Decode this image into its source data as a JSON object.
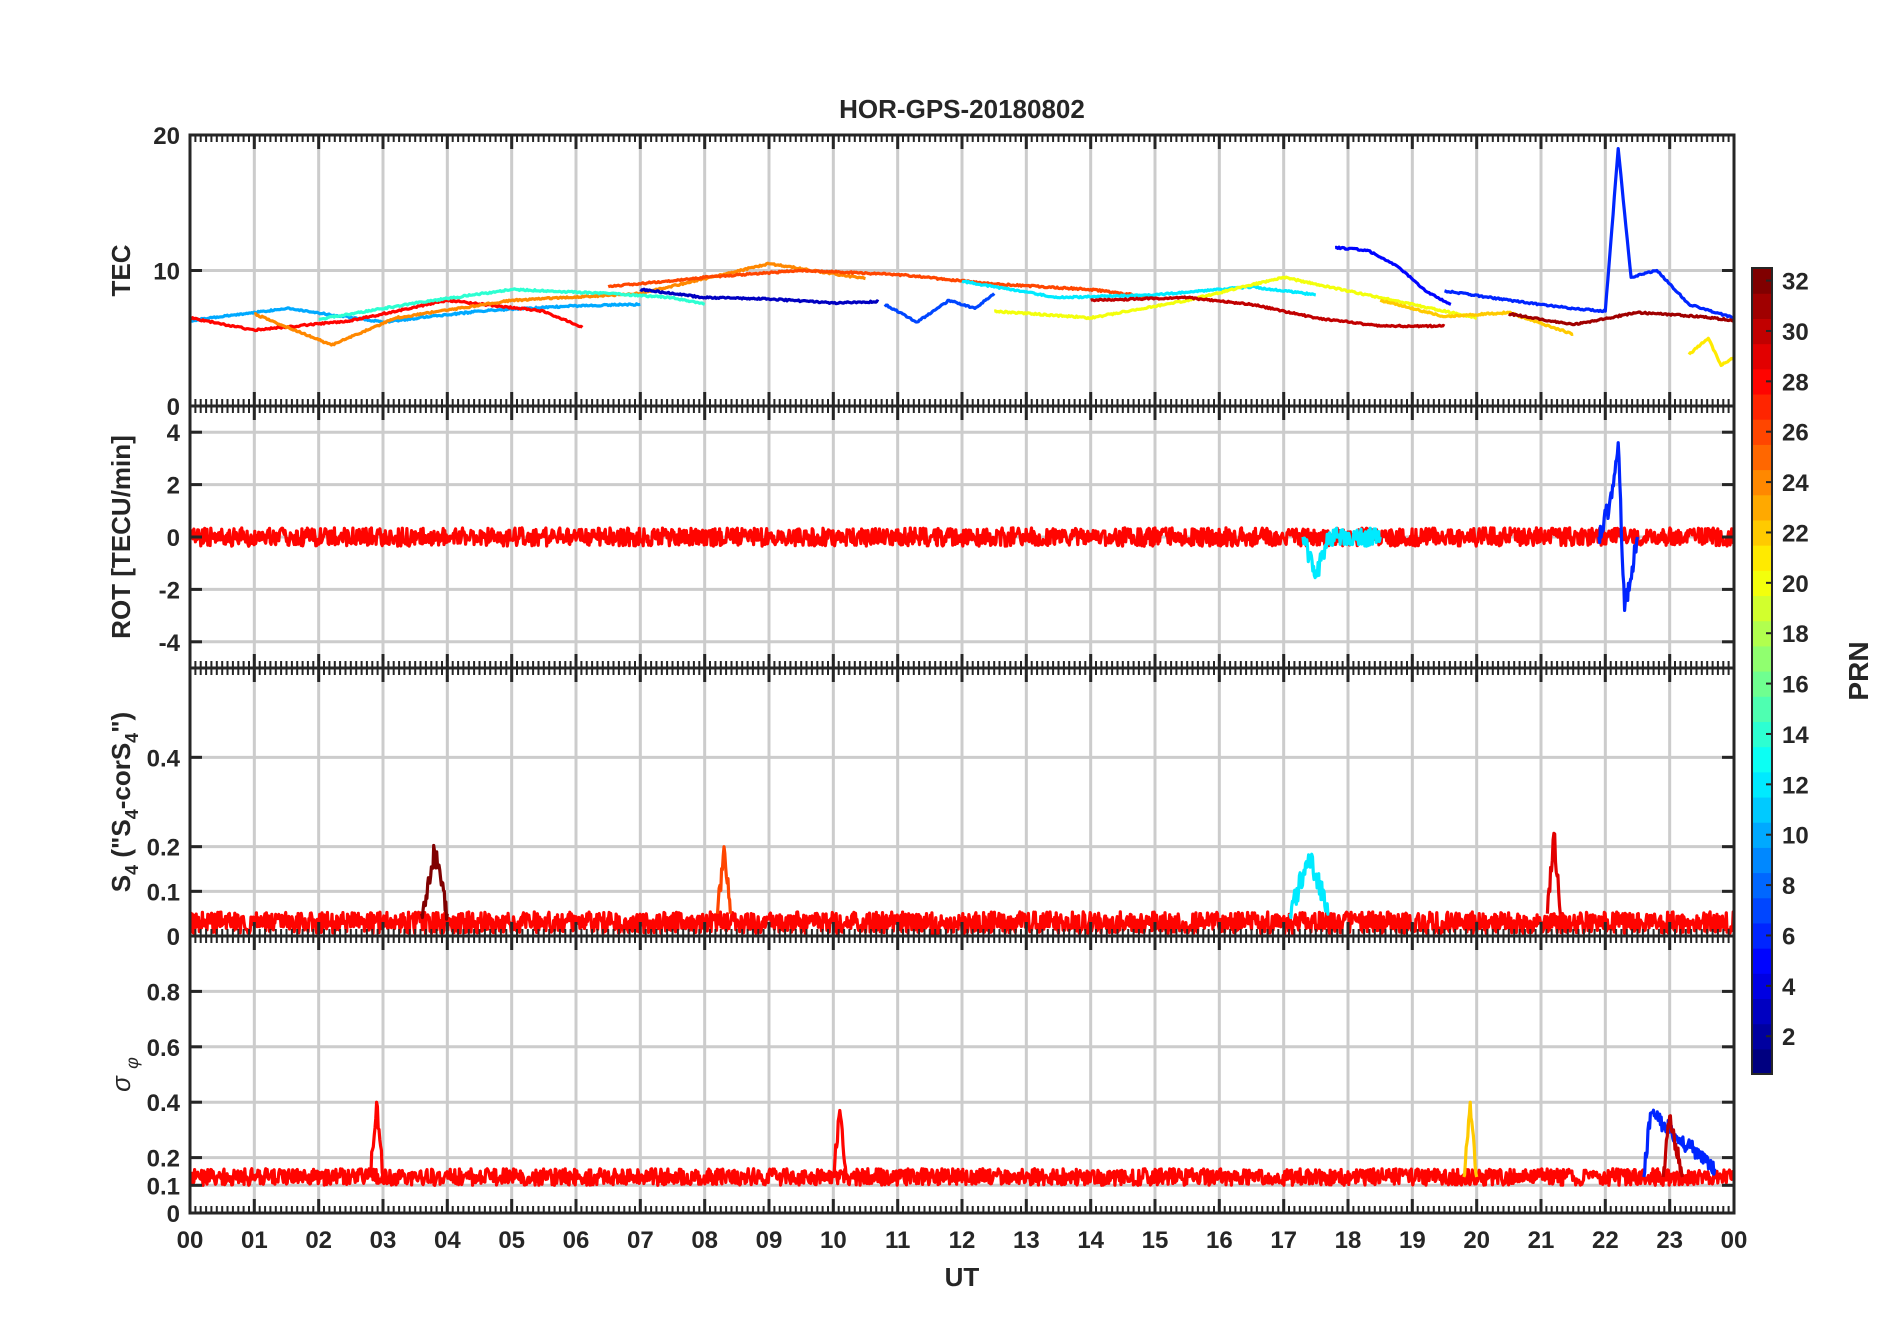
{
  "title": "HOR-GPS-20180802",
  "xlabel": "UT",
  "x_ticks": [
    "00",
    "01",
    "02",
    "03",
    "04",
    "05",
    "06",
    "07",
    "08",
    "09",
    "10",
    "11",
    "12",
    "13",
    "14",
    "15",
    "16",
    "17",
    "18",
    "19",
    "20",
    "21",
    "22",
    "23",
    "00"
  ],
  "colorbar": {
    "label": "PRN",
    "range": [
      1,
      32
    ],
    "ticks": [
      "2",
      "4",
      "6",
      "8",
      "10",
      "12",
      "14",
      "16",
      "18",
      "20",
      "22",
      "24",
      "26",
      "28",
      "30",
      "32"
    ],
    "colormap": "jet"
  },
  "chart_data": [
    {
      "type": "line",
      "ylabel": "TEC",
      "ylim": [
        0,
        20
      ],
      "yticks": [
        "0",
        "10",
        "20"
      ],
      "xlim": [
        0,
        24
      ],
      "grid": true,
      "series": [
        {
          "prn": 10,
          "x": [
            0.0,
            1.5,
            3.0,
            4.5,
            6.0,
            7.0
          ],
          "y": [
            6.3,
            7.2,
            6.2,
            7.0,
            7.4,
            7.5
          ]
        },
        {
          "prn": 28,
          "x": [
            0.0,
            1.0,
            2.5,
            4.0,
            5.5,
            6.1
          ],
          "y": [
            6.5,
            5.6,
            6.3,
            7.8,
            7.0,
            5.8
          ]
        },
        {
          "prn": 24,
          "x": [
            1.0,
            2.2,
            3.2,
            5.0,
            7.0,
            9.0,
            10.5
          ],
          "y": [
            6.8,
            4.5,
            6.5,
            7.8,
            8.3,
            10.5,
            9.4
          ]
        },
        {
          "prn": 14,
          "x": [
            2.0,
            3.5,
            5.0,
            6.5,
            7.5,
            8.0
          ],
          "y": [
            6.4,
            7.6,
            8.6,
            8.3,
            8.0,
            7.5
          ]
        },
        {
          "prn": 26,
          "x": [
            6.5,
            8.0,
            9.5,
            11.0,
            12.5,
            14.0,
            15.0
          ],
          "y": [
            8.8,
            9.5,
            10.0,
            9.7,
            9.0,
            8.6,
            8.0
          ]
        },
        {
          "prn": 3,
          "x": [
            7.0,
            8.0,
            9.0,
            10.0,
            10.7
          ],
          "y": [
            8.6,
            8.0,
            7.9,
            7.6,
            7.7
          ]
        },
        {
          "prn": 7,
          "x": [
            10.8,
            11.3,
            11.8,
            12.2,
            12.5
          ],
          "y": [
            7.5,
            6.2,
            7.8,
            7.2,
            8.3
          ]
        },
        {
          "prn": 12,
          "x": [
            12.0,
            13.5,
            15.0,
            16.5,
            17.5
          ],
          "y": [
            9.2,
            8.0,
            8.2,
            8.8,
            8.2
          ]
        },
        {
          "prn": 20,
          "x": [
            12.5,
            14.0,
            15.5,
            17.0,
            18.5,
            20.0
          ],
          "y": [
            7.0,
            6.5,
            7.8,
            9.5,
            8.0,
            6.5
          ]
        },
        {
          "prn": 30,
          "x": [
            14.0,
            15.5,
            16.5,
            17.5,
            18.5,
            19.5
          ],
          "y": [
            7.8,
            8.0,
            7.5,
            6.5,
            5.9,
            5.9
          ]
        },
        {
          "prn": 5,
          "x": [
            17.8,
            18.3,
            18.8,
            19.2,
            19.6
          ],
          "y": [
            11.7,
            11.5,
            10.2,
            8.5,
            7.5
          ]
        },
        {
          "prn": 6,
          "x": [
            19.5,
            20.5,
            21.5,
            22.0,
            22.2,
            22.4,
            22.8,
            23.3,
            24.0
          ],
          "y": [
            8.5,
            7.8,
            7.2,
            7.0,
            19.0,
            9.5,
            10.0,
            7.5,
            6.5
          ]
        },
        {
          "prn": 22,
          "x": [
            18.5,
            19.5,
            20.5,
            21.5
          ],
          "y": [
            7.8,
            6.6,
            6.9,
            5.3
          ]
        },
        {
          "prn": 31,
          "x": [
            20.5,
            21.5,
            22.5,
            23.5,
            24.0
          ],
          "y": [
            6.8,
            6.0,
            6.9,
            6.6,
            6.3
          ]
        },
        {
          "prn": 21,
          "x": [
            23.3,
            23.6,
            23.8,
            24.0
          ],
          "y": [
            3.8,
            5.0,
            3.0,
            3.6
          ]
        }
      ]
    },
    {
      "type": "line",
      "ylabel": "ROT [TECU/min]",
      "ylim": [
        -5,
        5
      ],
      "yticks": [
        "-4",
        "-2",
        "0",
        "2",
        "4"
      ],
      "xlim": [
        0,
        24
      ],
      "grid": true,
      "series": [
        {
          "prn": 28,
          "x": [
            0.0,
            24.0
          ],
          "y": [
            0.0,
            0.0
          ]
        },
        {
          "prn": 6,
          "x": [
            21.9,
            22.1,
            22.2,
            22.3,
            22.5
          ],
          "y": [
            0.0,
            1.5,
            3.6,
            -2.8,
            0.0
          ]
        },
        {
          "prn": 12,
          "x": [
            17.3,
            17.5,
            17.7,
            18.5
          ],
          "y": [
            0.0,
            -1.5,
            0.0,
            0.0
          ]
        }
      ]
    },
    {
      "type": "line",
      "ylabel_parts": [
        "S",
        "4",
        " (\"S",
        "4",
        "-corS",
        "4",
        "\")"
      ],
      "ylim": [
        0,
        0.6
      ],
      "yticks": [
        "0",
        "0.1",
        "0.2",
        "0.4"
      ],
      "xlim": [
        0,
        24
      ],
      "grid": true,
      "series": [
        {
          "prn": 28,
          "x": [
            0.0,
            24.0
          ],
          "y": [
            0.03,
            0.03
          ]
        },
        {
          "prn": 26,
          "x": [
            8.2,
            8.3,
            8.4
          ],
          "y": [
            0.05,
            0.2,
            0.05
          ]
        },
        {
          "prn": 29,
          "x": [
            21.1,
            21.2,
            21.3
          ],
          "y": [
            0.05,
            0.23,
            0.05
          ]
        },
        {
          "prn": 12,
          "x": [
            17.1,
            17.4,
            17.7
          ],
          "y": [
            0.05,
            0.18,
            0.05
          ]
        },
        {
          "prn": 32,
          "x": [
            3.6,
            3.8,
            4.0
          ],
          "y": [
            0.05,
            0.19,
            0.05
          ]
        }
      ]
    },
    {
      "type": "line",
      "ylabel_parts": [
        "σ",
        " ",
        "φ"
      ],
      "ylim": [
        0,
        1
      ],
      "yticks": [
        "0",
        "0.1",
        "0.2",
        "0.4",
        "0.6",
        "0.8"
      ],
      "xlim": [
        0,
        24
      ],
      "grid": true,
      "series": [
        {
          "prn": 28,
          "x": [
            0.0,
            24.0
          ],
          "y": [
            0.13,
            0.13
          ]
        },
        {
          "prn": 28,
          "x": [
            2.8,
            2.9,
            3.0
          ],
          "y": [
            0.13,
            0.4,
            0.13
          ]
        },
        {
          "prn": 28,
          "x": [
            10.0,
            10.1,
            10.2
          ],
          "y": [
            0.13,
            0.37,
            0.13
          ]
        },
        {
          "prn": 22,
          "x": [
            19.8,
            19.9,
            20.0
          ],
          "y": [
            0.13,
            0.4,
            0.13
          ]
        },
        {
          "prn": 6,
          "x": [
            22.6,
            22.7,
            23.7
          ],
          "y": [
            0.13,
            0.36,
            0.16
          ]
        },
        {
          "prn": 30,
          "x": [
            22.9,
            23.0,
            23.2
          ],
          "y": [
            0.13,
            0.35,
            0.13
          ]
        }
      ]
    }
  ]
}
